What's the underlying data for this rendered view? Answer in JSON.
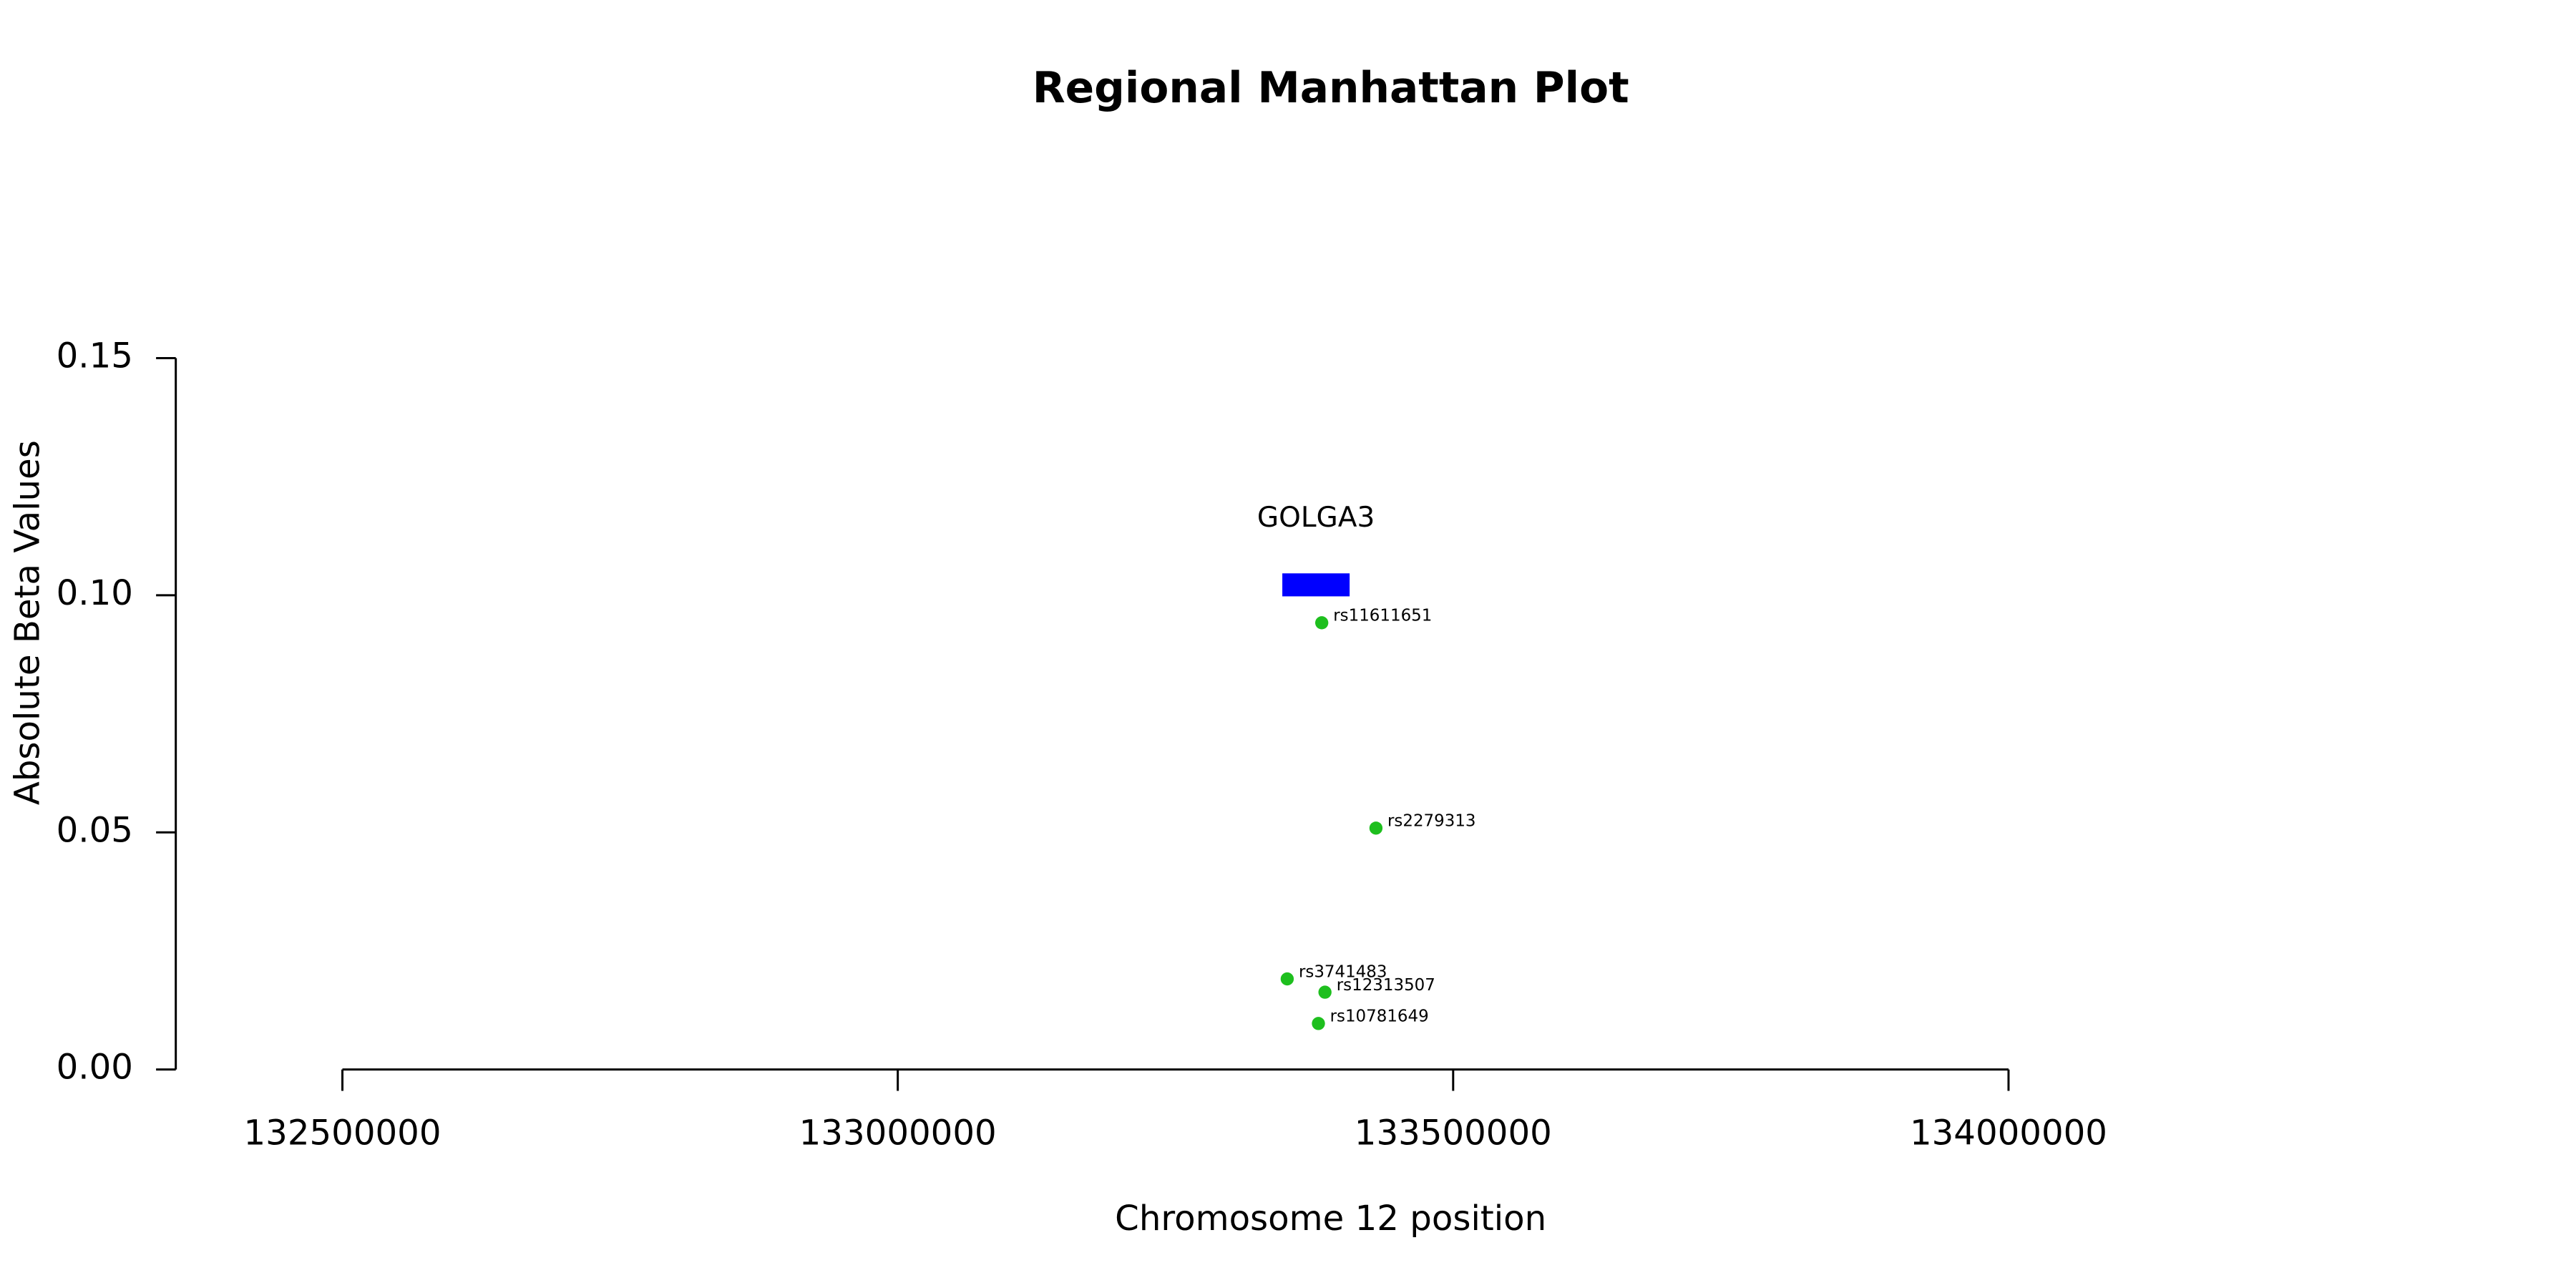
{
  "chart_data": {
    "type": "scatter",
    "title": "Regional Manhattan Plot",
    "x_label": "Chromosome 12 position",
    "y_label": "Absolute Beta Values",
    "x": [
      133381700,
      133430500,
      133350600,
      133384600,
      133378700
    ],
    "series": [
      {
        "color": "#1ebf1e",
        "values": [
          0.0942,
          0.0509,
          0.0191,
          0.0163,
          0.0097
        ]
      }
    ],
    "point_labels": [
      "rs11611651",
      "rs2279313",
      "rs3741483",
      "rs12313507",
      "rs10781649"
    ],
    "genes": [
      {
        "name": "GOLGA3",
        "start": 133346200,
        "end": 133406800,
        "color": "#0000ff"
      }
    ],
    "xlim": [
      132350000,
      134150000
    ],
    "xticks": [
      132500000,
      133000000,
      133500000,
      134000000
    ],
    "ylim": [
      0,
      0.15
    ],
    "yticks": [
      {
        "value": 0,
        "label": "0.00"
      },
      {
        "value": 0.05,
        "label": "0.05"
      },
      {
        "value": 0.1,
        "label": "0.10"
      },
      {
        "value": 0.15,
        "label": "0.15"
      }
    ],
    "grid": false
  }
}
